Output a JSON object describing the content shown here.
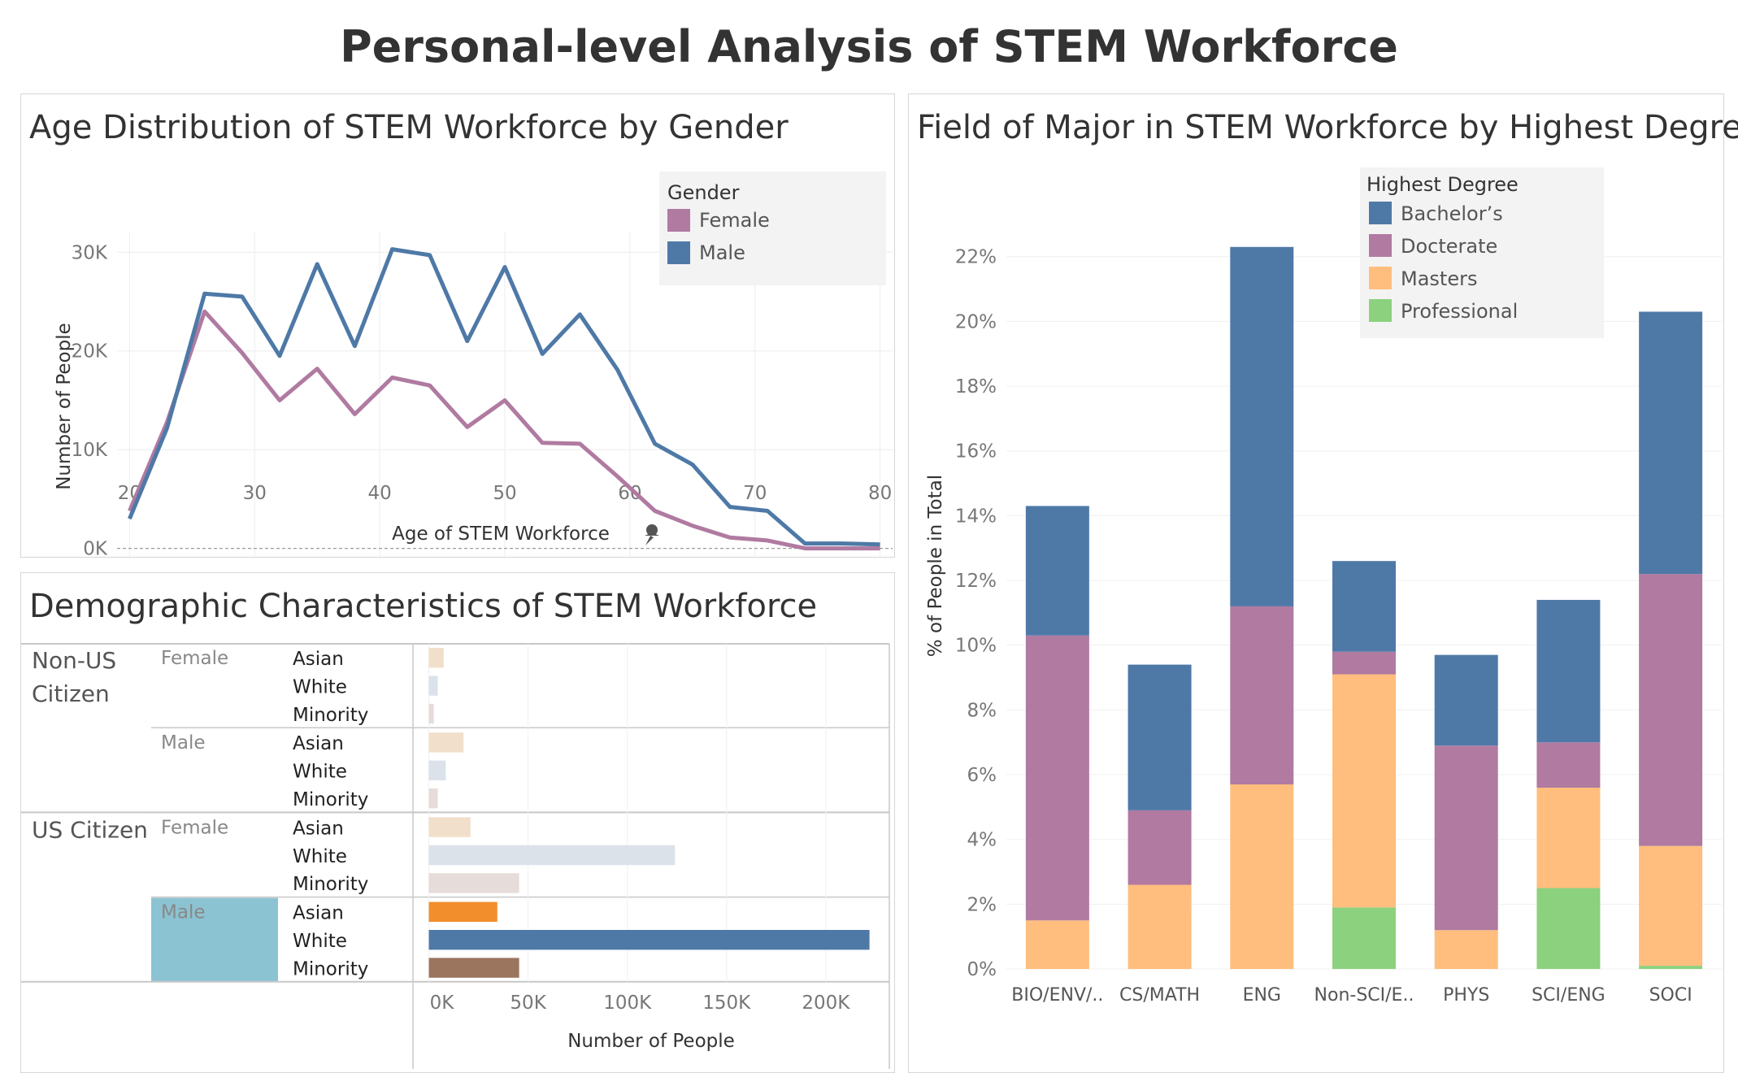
{
  "page": {
    "title": "Personal-level Analysis of STEM Workforce"
  },
  "chart_data": [
    {
      "type": "line",
      "title": "Age Distribution of STEM Workforce by Gender",
      "xlabel": "Age of STEM Workforce",
      "ylabel": "Number of People",
      "xlim": [
        19,
        81
      ],
      "ylim": [
        -2500,
        32000
      ],
      "x_ticks": [
        20,
        30,
        40,
        50,
        60,
        70,
        80
      ],
      "y_ticks": [
        0,
        10000,
        20000,
        30000
      ],
      "y_tick_labels": [
        "0K",
        "10K",
        "20K",
        "30K"
      ],
      "legend": {
        "title": "Gender",
        "position": "top-right"
      },
      "x": [
        20,
        23,
        26,
        29,
        32,
        35,
        38,
        41,
        44,
        47,
        50,
        53,
        56,
        59,
        62,
        65,
        68,
        71,
        74,
        77,
        80
      ],
      "series": [
        {
          "name": "Female",
          "color": "#b07aa1",
          "values": [
            3800,
            12800,
            24000,
            19800,
            15000,
            18200,
            13600,
            17300,
            16500,
            12300,
            15000,
            10700,
            10600,
            7300,
            3800,
            2300,
            1100,
            800,
            0,
            0,
            0
          ]
        },
        {
          "name": "Male",
          "color": "#4e79a7",
          "values": [
            3000,
            12200,
            25800,
            25500,
            19500,
            28800,
            20500,
            30300,
            29700,
            21000,
            28500,
            19700,
            23700,
            18100,
            10600,
            8500,
            4200,
            3800,
            500,
            500,
            400
          ]
        }
      ]
    },
    {
      "type": "bar",
      "orientation": "horizontal",
      "title": "Demographic Characteristics of STEM Workforce",
      "xlabel": "Number of People",
      "xlim": [
        -8000,
        232000
      ],
      "x_ticks": [
        0,
        50000,
        100000,
        150000,
        200000
      ],
      "x_tick_labels": [
        "0K",
        "50K",
        "100K",
        "150K",
        "200K"
      ],
      "groups": [
        {
          "citizenship": "Non-US Citizen",
          "citizenship_lines": [
            "Non-US",
            "Citizen"
          ],
          "genders": [
            {
              "gender": "Female",
              "rows": [
                {
                  "race": "Asian",
                  "value": 7500,
                  "color": "#f1dfcb"
                },
                {
                  "race": "White",
                  "value": 4500,
                  "color": "#dbe2ea"
                },
                {
                  "race": "Minority",
                  "value": 2500,
                  "color": "#e6dcd9"
                }
              ]
            },
            {
              "gender": "Male",
              "rows": [
                {
                  "race": "Asian",
                  "value": 17500,
                  "color": "#f1dfcb"
                },
                {
                  "race": "White",
                  "value": 8500,
                  "color": "#dbe2ea"
                },
                {
                  "race": "Minority",
                  "value": 4500,
                  "color": "#e6dcd9"
                }
              ]
            }
          ]
        },
        {
          "citizenship": "US Citizen",
          "citizenship_lines": [
            "US Citizen"
          ],
          "genders": [
            {
              "gender": "Female",
              "rows": [
                {
                  "race": "Asian",
                  "value": 21000,
                  "color": "#f1dfcb"
                },
                {
                  "race": "White",
                  "value": 124000,
                  "color": "#dbe2ea"
                },
                {
                  "race": "Minority",
                  "value": 45500,
                  "color": "#e6dcd9"
                }
              ]
            },
            {
              "gender": "Male",
              "highlighted": true,
              "rows": [
                {
                  "race": "Asian",
                  "value": 34500,
                  "color": "#f28e2b"
                },
                {
                  "race": "White",
                  "value": 222000,
                  "color": "#4e79a7"
                },
                {
                  "race": "Minority",
                  "value": 45500,
                  "color": "#9c755f"
                }
              ]
            }
          ]
        }
      ]
    },
    {
      "type": "bar",
      "stacked": true,
      "title": "Field of Major in STEM Workforce by Highest Degree",
      "ylabel": "% of People in Total",
      "ylim": [
        -0.3,
        23.5
      ],
      "y_ticks": [
        0,
        2,
        4,
        6,
        8,
        10,
        12,
        14,
        16,
        18,
        20,
        22
      ],
      "y_tick_labels": [
        "0%",
        "2%",
        "4%",
        "6%",
        "8%",
        "10%",
        "12%",
        "14%",
        "16%",
        "18%",
        "20%",
        "22%"
      ],
      "categories": [
        "BIO/ENV/..",
        "CS/MATH",
        "ENG",
        "Non-SCI/E..",
        "PHYS",
        "SCI/ENG",
        "SOCI"
      ],
      "legend": {
        "title": "Highest Degree",
        "position": "top-right"
      },
      "series": [
        {
          "name": "Professional",
          "color": "#8cd17d",
          "values": [
            0,
            0,
            0,
            1.9,
            0,
            2.5,
            0.1
          ]
        },
        {
          "name": "Masters",
          "color": "#ffbe7d",
          "values": [
            1.5,
            2.6,
            5.7,
            7.2,
            1.2,
            3.1,
            3.7
          ]
        },
        {
          "name": "Docterate",
          "color": "#b07aa1",
          "values": [
            8.8,
            2.3,
            5.5,
            0.7,
            5.7,
            1.4,
            8.4
          ]
        },
        {
          "name": "Bachelor’s",
          "color": "#4e79a7",
          "values": [
            4.0,
            4.5,
            11.1,
            2.8,
            2.8,
            4.4,
            8.1
          ]
        }
      ],
      "legend_order": [
        "Bachelor’s",
        "Docterate",
        "Masters",
        "Professional"
      ]
    }
  ]
}
